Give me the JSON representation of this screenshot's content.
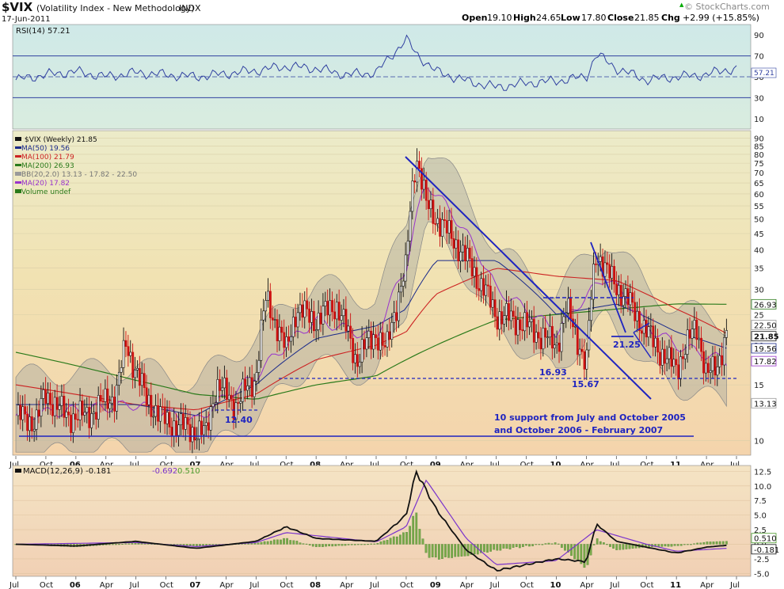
{
  "header": {
    "symbol": "$VIX",
    "name": "(Volatility Index - New Methodology)",
    "exchange": "INDX",
    "date": "17-Jun-2011",
    "brand": "© StockCharts.com",
    "ohlc": {
      "open_label": "Open",
      "open": "19.10",
      "high_label": "High",
      "high": "24.65",
      "low_label": "Low",
      "low": "17.80",
      "close_label": "Close",
      "close": "21.85",
      "chg_label": "Chg",
      "chg": "+2.99 (+15.85%)",
      "chg_arrow": "▲"
    }
  },
  "colors": {
    "rsi_bg": "#cfe8e6",
    "price_bg_top": "#efeac0",
    "price_bg_bottom": "#f3d8b0",
    "macd_bg": "#f3dcc0",
    "up": "#111111",
    "down": "#cc1111",
    "ma50": "#1a2a8a",
    "ma100": "#cc2222",
    "ma200": "#2a7a1a",
    "ma20": "#9933cc",
    "bb": "#9a9a9a",
    "trend": "#1f24c0",
    "annot": "#1f24c0"
  },
  "chart_data": [
    {
      "type": "line",
      "title": "RSI(14) 57.21",
      "legend": "RSI(14) 57.21",
      "ylim": [
        0,
        100
      ],
      "yticks": [
        10,
        30,
        50,
        70,
        90
      ],
      "reference_lines": [
        30,
        50,
        70
      ],
      "last_value": "57.21",
      "series": [
        {
          "name": "RSI(14)",
          "x": [
            "2005-07",
            "2005-10",
            "2006-01",
            "2006-04",
            "2006-07",
            "2006-10",
            "2007-01",
            "2007-04",
            "2007-07",
            "2007-10",
            "2008-01",
            "2008-04",
            "2008-07",
            "2008-10",
            "2008-11",
            "2009-01",
            "2009-04",
            "2009-07",
            "2009-10",
            "2010-01",
            "2010-04",
            "2010-05",
            "2010-07",
            "2010-10",
            "2011-01",
            "2011-04",
            "2011-06"
          ],
          "values": [
            47,
            52,
            55,
            50,
            54,
            52,
            50,
            53,
            56,
            60,
            58,
            52,
            54,
            86,
            72,
            55,
            46,
            40,
            44,
            46,
            50,
            72,
            58,
            47,
            50,
            52,
            57
          ]
        }
      ]
    },
    {
      "type": "line",
      "title": "$VIX (Weekly) 21.85",
      "xlabel": "",
      "ylabel": "",
      "log_scale": true,
      "ylim": [
        9,
        95
      ],
      "yticks": [
        10,
        15,
        20,
        25,
        30,
        35,
        40,
        45,
        50,
        55,
        60,
        65,
        70,
        75,
        80,
        85,
        90
      ],
      "x_ticks": [
        "Jul",
        "Oct",
        "06",
        "Apr",
        "Jul",
        "Oct",
        "07",
        "Apr",
        "Jul",
        "Oct",
        "08",
        "Apr",
        "Jul",
        "Oct",
        "09",
        "Apr",
        "Jul",
        "Oct",
        "10",
        "Apr",
        "Jul",
        "Oct",
        "11",
        "Apr",
        "Jul"
      ],
      "legend": [
        {
          "label": "$VIX (Weekly) 21.85",
          "color": "#111111"
        },
        {
          "label": "MA(50) 19.56",
          "color": "#1a2a8a"
        },
        {
          "label": "MA(100) 21.79",
          "color": "#cc2222"
        },
        {
          "label": "MA(200) 26.93",
          "color": "#2a7a1a"
        },
        {
          "label": "BB(20,2.0) 13.13 - 17.82 - 22.50",
          "color": "#9a9a9a"
        },
        {
          "label": "MA(20) 17.82",
          "color": "#9933cc"
        },
        {
          "label": "Volume undef",
          "color": "#2a7a1a"
        }
      ],
      "right_labels": [
        "26.93",
        "22.50",
        "21.85",
        "19.56",
        "17.82",
        "13.13"
      ],
      "series": [
        {
          "name": "$VIX (Weekly)",
          "x": [
            "2005-07",
            "2005-09",
            "2005-10",
            "2005-12",
            "2006-02",
            "2006-05",
            "2006-06",
            "2006-08",
            "2006-10",
            "2006-12",
            "2007-02",
            "2007-03",
            "2007-05",
            "2007-07",
            "2007-08",
            "2007-10",
            "2007-11",
            "2008-01",
            "2008-03",
            "2008-05",
            "2008-07",
            "2008-08",
            "2008-10",
            "2008-11",
            "2008-12",
            "2009-02",
            "2009-03",
            "2009-05",
            "2009-07",
            "2009-09",
            "2009-11",
            "2010-01",
            "2010-02",
            "2010-04",
            "2010-05",
            "2010-06",
            "2010-08",
            "2010-09",
            "2010-10",
            "2010-12",
            "2011-01",
            "2011-03",
            "2011-04",
            "2011-05",
            "2011-06"
          ],
          "values": [
            12,
            11.5,
            14,
            12,
            12,
            14,
            20,
            13.5,
            11.5,
            11,
            10.5,
            15,
            13,
            16,
            28,
            19,
            26,
            24,
            27,
            18,
            22,
            19,
            35,
            80,
            55,
            46,
            42,
            33,
            25,
            24,
            22,
            20,
            26,
            17,
            40,
            34,
            28,
            25,
            22,
            18,
            17,
            23,
            16,
            17,
            21.85
          ]
        },
        {
          "name": "MA(50)",
          "x": [
            "2005-07",
            "2006-07",
            "2007-01",
            "2007-07",
            "2008-01",
            "2008-07",
            "2008-10",
            "2009-01",
            "2009-07",
            "2010-01",
            "2010-07",
            "2011-01",
            "2011-06"
          ],
          "values": [
            13,
            13,
            12,
            15,
            21,
            23,
            26,
            37,
            37,
            25,
            27,
            22,
            19.56
          ]
        },
        {
          "name": "MA(100)",
          "x": [
            "2005-07",
            "2006-07",
            "2007-01",
            "2007-07",
            "2008-01",
            "2008-07",
            "2008-10",
            "2009-01",
            "2009-07",
            "2010-01",
            "2010-07",
            "2011-01",
            "2011-06"
          ],
          "values": [
            15,
            13,
            12.5,
            14,
            18,
            20,
            22,
            29,
            35,
            33,
            32,
            26,
            21.79
          ]
        },
        {
          "name": "MA(200)",
          "x": [
            "2005-07",
            "2006-07",
            "2007-01",
            "2007-07",
            "2008-01",
            "2008-07",
            "2009-01",
            "2009-07",
            "2010-01",
            "2010-07",
            "2011-01",
            "2011-06"
          ],
          "values": [
            19,
            15.5,
            14,
            13.5,
            15,
            16,
            20,
            24,
            25,
            26,
            27,
            26.93
          ]
        },
        {
          "name": "MA(20)",
          "x": [
            "2005-07",
            "2006-07",
            "2007-01",
            "2007-07",
            "2008-01",
            "2008-07",
            "2008-10",
            "2008-12",
            "2009-07",
            "2010-01",
            "2010-06",
            "2010-10",
            "2011-01",
            "2011-06"
          ],
          "values": [
            12,
            13,
            11.5,
            16,
            24,
            21,
            35,
            65,
            30,
            22,
            33,
            23,
            20,
            17.82
          ]
        }
      ],
      "annotations": [
        {
          "text": "12.40",
          "value": 12.4
        },
        {
          "text": "16.93",
          "value": 16.93
        },
        {
          "text": "15.67",
          "value": 15.67
        },
        {
          "text": "21.25",
          "value": 21.25
        },
        {
          "text": "10 support from July and October 2005",
          "value": 10.2
        },
        {
          "text": "and October 2006  - February 2007",
          "value": 10.2
        }
      ]
    },
    {
      "type": "line",
      "title": "MACD(12,26,9) -0.181, -0.692, 0.510",
      "legend": [
        "MACD(12,26,9) -0.181",
        "-0.692",
        "0.510"
      ],
      "ylim": [
        -5.5,
        13.5
      ],
      "yticks": [
        -5.0,
        -2.5,
        0.0,
        2.5,
        5.0,
        7.5,
        10.0,
        12.5
      ],
      "right_labels": [
        "0.510",
        "-0.181"
      ],
      "series": [
        {
          "name": "MACD",
          "x": [
            "2005-07",
            "2006-01",
            "2006-07",
            "2007-01",
            "2007-07",
            "2007-10",
            "2008-01",
            "2008-07",
            "2008-10",
            "2008-11",
            "2009-01",
            "2009-04",
            "2009-07",
            "2009-10",
            "2010-01",
            "2010-04",
            "2010-05",
            "2010-07",
            "2010-10",
            "2011-01",
            "2011-04",
            "2011-06"
          ],
          "values": [
            0,
            -0.3,
            0.5,
            -0.7,
            0.5,
            3,
            1,
            0.5,
            5,
            12.5,
            6,
            -1,
            -4.5,
            -3.5,
            -2.5,
            -3,
            3.5,
            0.5,
            -0.5,
            -1.5,
            -0.5,
            -0.181
          ]
        },
        {
          "name": "Signal",
          "x": [
            "2005-07",
            "2006-07",
            "2007-01",
            "2007-07",
            "2007-10",
            "2008-07",
            "2008-10",
            "2008-12",
            "2009-04",
            "2009-07",
            "2010-01",
            "2010-05",
            "2010-07",
            "2010-10",
            "2011-01",
            "2011-06"
          ],
          "values": [
            0,
            0.3,
            -0.4,
            0.3,
            2,
            0.4,
            3,
            11,
            1,
            -3.5,
            -2.8,
            2.5,
            1.5,
            0,
            -1.2,
            -0.692
          ]
        }
      ]
    }
  ]
}
